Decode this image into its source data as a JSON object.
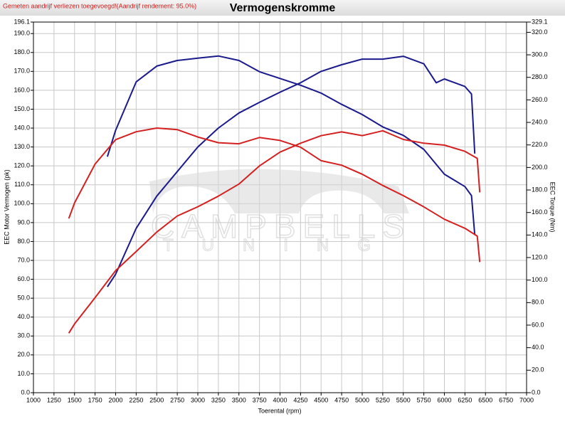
{
  "chart_data": {
    "type": "line",
    "title": "Vermogenskromme",
    "note": "Gemeten aandrijf verliezen toegevoegd!(Aandrijf rendement: 95.0%)",
    "watermark": [
      "CAMPBELLS",
      "TUNING"
    ],
    "x_label": "Toerental (rpm)",
    "y_label": "EEC Motor Vermogen (pk)",
    "y2_label": "EEC Torque (Nm)",
    "xlim": [
      1000,
      7000
    ],
    "xticks": [
      1000,
      1250,
      1500,
      1750,
      2000,
      2250,
      2500,
      2750,
      3000,
      3250,
      3500,
      3750,
      4000,
      4250,
      4500,
      4750,
      5000,
      5250,
      5500,
      5750,
      6000,
      6250,
      6500,
      6750,
      7000
    ],
    "ylim": [
      0,
      196.1
    ],
    "yticks": [
      {
        "value": 0,
        "label": "0.0"
      },
      {
        "value": 10,
        "label": "10.0"
      },
      {
        "value": 20,
        "label": "20.0"
      },
      {
        "value": 30,
        "label": "30.0"
      },
      {
        "value": 40,
        "label": "40.0"
      },
      {
        "value": 50,
        "label": "50.0"
      },
      {
        "value": 60,
        "label": "60.0"
      },
      {
        "value": 70,
        "label": "70.0"
      },
      {
        "value": 80,
        "label": "80.0"
      },
      {
        "value": 90,
        "label": "90.0"
      },
      {
        "value": 100,
        "label": "100.0"
      },
      {
        "value": 110,
        "label": "110.0"
      },
      {
        "value": 120,
        "label": "120.0"
      },
      {
        "value": 130,
        "label": "130.0"
      },
      {
        "value": 140,
        "label": "140.0"
      },
      {
        "value": 150,
        "label": "150.0"
      },
      {
        "value": 160,
        "label": "160.0"
      },
      {
        "value": 170,
        "label": "170.0"
      },
      {
        "value": 180,
        "label": "180.0"
      },
      {
        "value": 190,
        "label": "190.0"
      },
      196.1
    ],
    "y2lim": [
      0,
      329.1
    ],
    "y2ticks": [
      {
        "value": 0,
        "label": "0.0"
      },
      {
        "value": 20,
        "label": "20.0"
      },
      {
        "value": 40,
        "label": "40.0"
      },
      {
        "value": 60,
        "label": "60.0"
      },
      {
        "value": 80,
        "label": "80.0"
      },
      {
        "value": 100,
        "label": "100.0"
      },
      {
        "value": 120,
        "label": "120.0"
      },
      {
        "value": 140,
        "label": "140.0"
      },
      {
        "value": 160,
        "label": "160.0"
      },
      {
        "value": 180,
        "label": "180.0"
      },
      {
        "value": 200,
        "label": "200.0"
      },
      {
        "value": 220,
        "label": "220.0"
      },
      {
        "value": 240,
        "label": "240.0"
      },
      {
        "value": 260,
        "label": "260.0"
      },
      {
        "value": 280,
        "label": "280.0"
      },
      {
        "value": 300,
        "label": "300.0"
      },
      {
        "value": 320,
        "label": "320.0"
      },
      329.1
    ],
    "grid": true,
    "series": [
      {
        "color": "#1a1a8c",
        "axis": "y",
        "x": [
          1900,
          2000,
          2250,
          2500,
          2750,
          3000,
          3250,
          3500,
          3750,
          4000,
          4250,
          4500,
          4750,
          5000,
          5250,
          5500,
          5750,
          5900,
          6000,
          6250,
          6330,
          6370
        ],
        "values": [
          56,
          62.7,
          87,
          104,
          117,
          130,
          140,
          148,
          153.6,
          159,
          164,
          170,
          173.5,
          176.5,
          176.5,
          178,
          174,
          164,
          166,
          162,
          158,
          126.5
        ]
      },
      {
        "color": "#1a1a8c",
        "axis": "y2",
        "x": [
          1900,
          2000,
          2250,
          2500,
          2750,
          3000,
          3250,
          3500,
          3750,
          4000,
          4250,
          4500,
          4750,
          5000,
          5250,
          5500,
          5750,
          6000,
          6250,
          6330,
          6370
        ],
        "values": [
          209.6,
          233,
          276,
          290,
          295,
          297,
          299,
          295,
          285,
          279,
          273,
          266,
          256,
          247,
          236,
          228.5,
          216,
          194,
          183,
          175,
          140
        ]
      },
      {
        "color": "#d42020",
        "axis": "y",
        "x": [
          1430,
          1500,
          1750,
          2000,
          2250,
          2500,
          2750,
          3000,
          3250,
          3500,
          3750,
          4000,
          4250,
          4500,
          4750,
          5000,
          5250,
          5500,
          5750,
          6000,
          6250,
          6400,
          6430
        ],
        "values": [
          31.5,
          36.4,
          50.3,
          64.6,
          74.7,
          85,
          93.5,
          98.4,
          104,
          110.4,
          120,
          127.3,
          132,
          136,
          138,
          136,
          138.6,
          134,
          132,
          131,
          127.7,
          124,
          106
        ]
      },
      {
        "color": "#d42020",
        "axis": "y2",
        "x": [
          1430,
          1500,
          1750,
          2000,
          2250,
          2500,
          2750,
          3000,
          3250,
          3500,
          3750,
          4000,
          4250,
          4500,
          4750,
          5000,
          5250,
          5500,
          5750,
          6000,
          6250,
          6400,
          6430
        ],
        "values": [
          154.7,
          168.6,
          203,
          224.7,
          231.7,
          235,
          233.6,
          227,
          222,
          221,
          226.6,
          224,
          218,
          206,
          202,
          194,
          184,
          175,
          165,
          154,
          146,
          139,
          116
        ]
      }
    ]
  }
}
